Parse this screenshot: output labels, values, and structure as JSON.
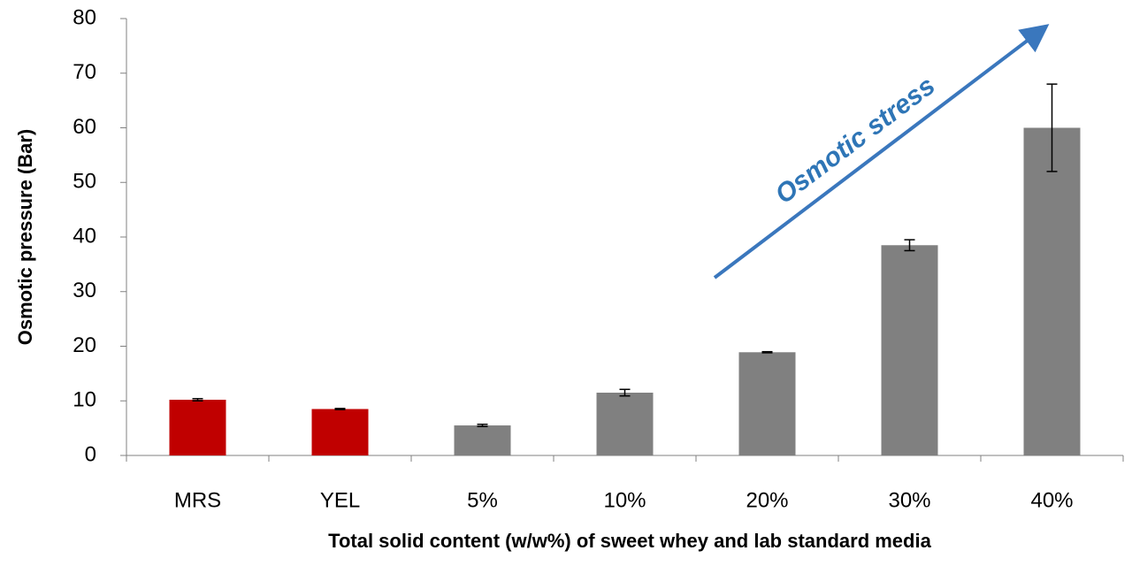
{
  "chart_data": {
    "type": "bar",
    "y_axis_label": "Osmotic pressure (Bar)",
    "x_axis_label": "Total solid content (w/w%) of sweet whey and lab standard media",
    "annotation": "Osmotic stress",
    "categories": [
      "MRS",
      "YEL",
      "5%",
      "10%",
      "20%",
      "30%",
      "40%"
    ],
    "values": [
      10.2,
      8.5,
      5.5,
      11.5,
      18.9,
      38.5,
      60
    ],
    "errors": [
      0.2,
      0.1,
      0.2,
      0.6,
      0.1,
      1.0,
      8
    ],
    "colors": [
      "#c00000",
      "#c00000",
      "#808080",
      "#808080",
      "#808080",
      "#808080",
      "#808080"
    ],
    "ylim": [
      0,
      80
    ],
    "yticks": [
      0,
      10,
      20,
      30,
      40,
      50,
      60,
      70,
      80
    ],
    "grid": false
  }
}
